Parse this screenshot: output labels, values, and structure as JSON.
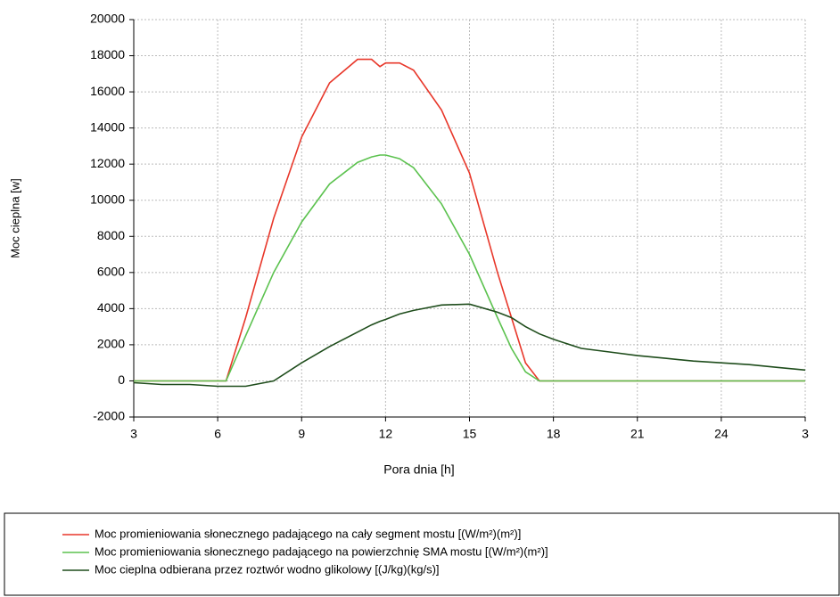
{
  "chart_data": {
    "type": "line",
    "x_label": "Pora dnia [h]",
    "y_label": "Moc cieplna [w]",
    "x": [
      3,
      4,
      5,
      6,
      6.3,
      7,
      8,
      9,
      10,
      11,
      11.5,
      11.8,
      12,
      12.5,
      13,
      14,
      15,
      16,
      16.5,
      17,
      17.5,
      18,
      19,
      20,
      21,
      22,
      23,
      24,
      25,
      26,
      27
    ],
    "series": [
      {
        "name": "Moc promieniowania słonecznego padającego na cały segment mostu [(W/m²)(m²)]",
        "color": "#e8372a",
        "values": [
          0,
          0,
          0,
          0,
          0,
          3500,
          9000,
          13500,
          16500,
          17800,
          17800,
          17400,
          17600,
          17600,
          17200,
          15000,
          11500,
          6000,
          3500,
          1000,
          0,
          0,
          0,
          0,
          0,
          0,
          0,
          0,
          0,
          0,
          0
        ]
      },
      {
        "name": "Moc promieniowania słonecznego padającego na powierzchnię SMA mostu [(W/m²)(m²)]",
        "color": "#5cc24f",
        "values": [
          0,
          0,
          0,
          0,
          0,
          2500,
          6000,
          8800,
          10900,
          12100,
          12400,
          12500,
          12500,
          12300,
          11800,
          9800,
          7000,
          3500,
          1800,
          500,
          0,
          0,
          0,
          0,
          0,
          0,
          0,
          0,
          0,
          0,
          0
        ]
      },
      {
        "name": "Moc cieplna odbierana przez roztwór wodno glikolowy [(J/kg)(kg/s)]",
        "color": "#1f4d1c",
        "values": [
          -100,
          -200,
          -200,
          -300,
          -300,
          -300,
          0,
          1000,
          1900,
          2700,
          3100,
          3300,
          3400,
          3700,
          3900,
          4200,
          4250,
          3800,
          3500,
          3000,
          2600,
          2300,
          1800,
          1600,
          1400,
          1250,
          1100,
          1000,
          900,
          750,
          600
        ]
      }
    ],
    "xlim": [
      3,
      27
    ],
    "xticks": [
      3,
      6,
      9,
      12,
      15,
      18,
      21,
      24,
      {
        "value": 27,
        "label": "3"
      }
    ],
    "ylim": [
      -2000,
      20000
    ],
    "yticks": [
      -2000,
      0,
      2000,
      4000,
      6000,
      8000,
      10000,
      12000,
      14000,
      16000,
      18000,
      20000
    ],
    "grid": true,
    "legend": "bottom"
  }
}
